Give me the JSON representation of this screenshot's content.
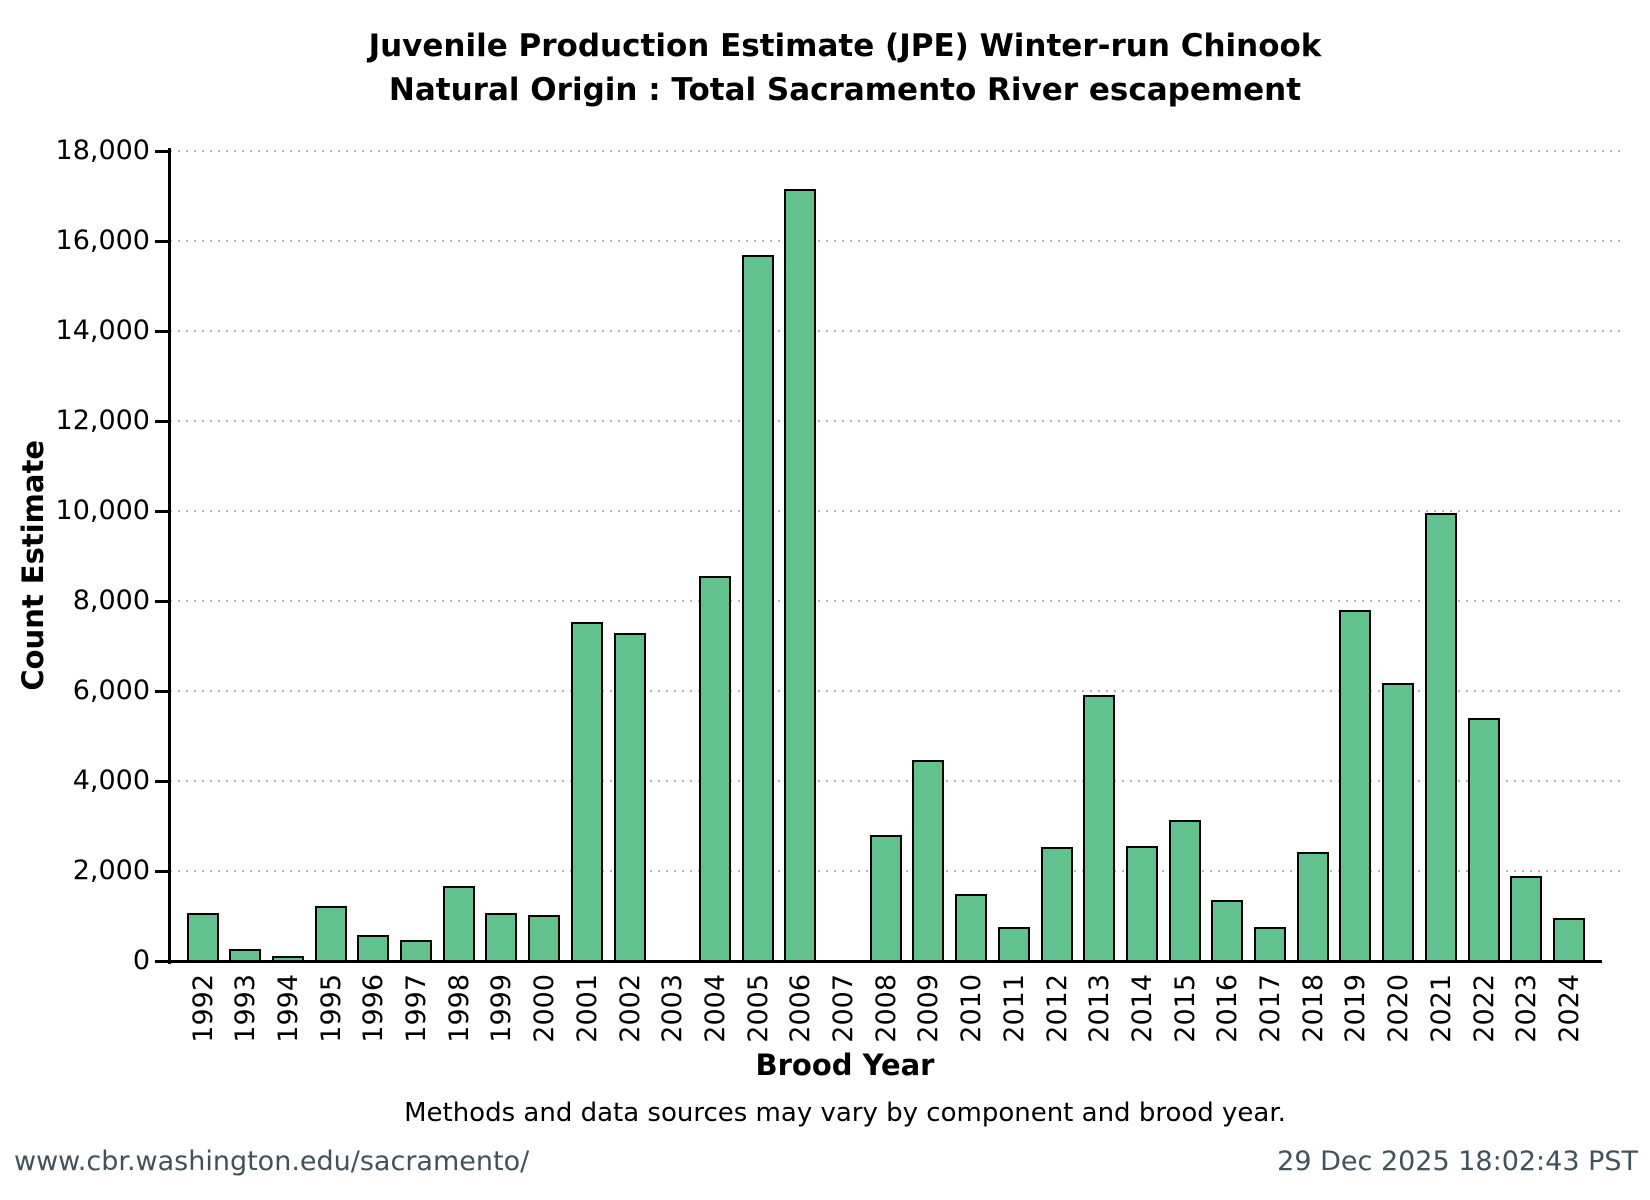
{
  "title": {
    "line1": "Juvenile Production Estimate (JPE) Winter-run Chinook",
    "line2": "Natural Origin : Total Sacramento River escapement"
  },
  "chart_data": {
    "type": "bar",
    "title": "Juvenile Production Estimate (JPE) Winter-run Chinook — Natural Origin : Total Sacramento River escapement",
    "xlabel": "Brood Year",
    "ylabel": "Count Estimate",
    "categories": [
      "1992",
      "1993",
      "1994",
      "1995",
      "1996",
      "1997",
      "1998",
      "1999",
      "2000",
      "2001",
      "2002",
      "2003",
      "2004",
      "2005",
      "2006",
      "2007",
      "2008",
      "2009",
      "2010",
      "2011",
      "2012",
      "2013",
      "2014",
      "2015",
      "2016",
      "2017",
      "2018",
      "2019",
      "2020",
      "2021",
      "2022",
      "2023",
      "2024"
    ],
    "values": [
      1100,
      300,
      150,
      1250,
      620,
      490,
      1700,
      1100,
      1050,
      7570,
      7320,
      0,
      8600,
      15720,
      17180,
      0,
      2830,
      4510,
      1520,
      790,
      2570,
      5950,
      2600,
      3170,
      1400,
      780,
      2460,
      7830,
      6210,
      9980,
      5430,
      1930,
      1000
    ],
    "ylim": [
      0,
      18000
    ],
    "ytick_interval": 2000,
    "grid": "horizontal-dotted",
    "legend": "none",
    "bar_fill": "#61c28e",
    "bar_edge": "#000000"
  },
  "caption": "Methods and data sources may vary by component and brood year.",
  "footer": {
    "left": "www.cbr.washington.edu/sacramento/",
    "right": "29 Dec 2025 18:02:43 PST"
  }
}
